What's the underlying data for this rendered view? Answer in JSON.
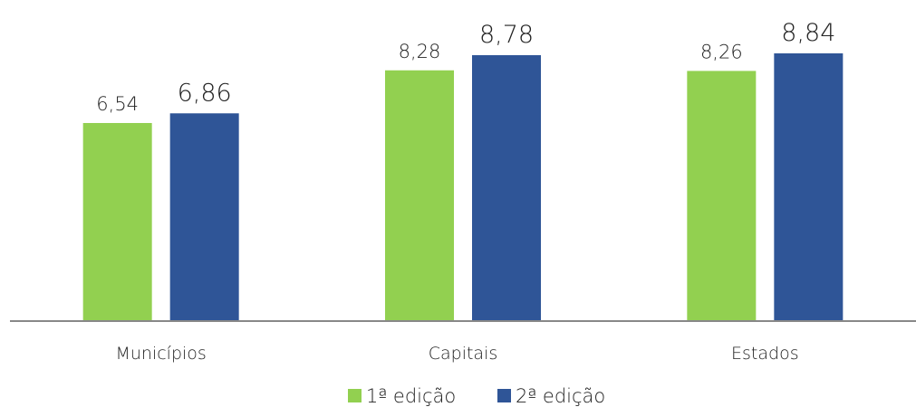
{
  "chart_data": {
    "type": "bar",
    "categories": [
      "Municípios",
      "Capitais",
      "Estados"
    ],
    "series": [
      {
        "name": "1ª edição",
        "color": "#92d050",
        "values": [
          6.54,
          8.28,
          8.26
        ],
        "value_labels": [
          "6,54",
          "8,28",
          "8,26"
        ]
      },
      {
        "name": "2ª edição",
        "color": "#2f5597",
        "values": [
          6.86,
          8.78,
          8.84
        ],
        "value_labels": [
          "6,86",
          "8,78",
          "8,84"
        ]
      }
    ],
    "legend": "bottom"
  }
}
